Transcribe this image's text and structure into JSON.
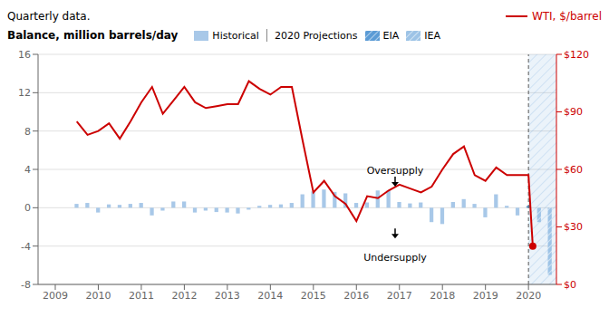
{
  "chart_data": {
    "type": "bar",
    "title": "Quarterly data.",
    "ylabel": "Balance, million barrels/day",
    "projection_label": "2020 Projections",
    "projection_start": 2020.0,
    "xlim": [
      2008.6,
      2020.65
    ],
    "xticks": [
      2009,
      2010,
      2011,
      2012,
      2013,
      2014,
      2015,
      2016,
      2017,
      2018,
      2019,
      2020
    ],
    "ylim": [
      -8,
      16
    ],
    "yticks": [
      -8,
      -4,
      0,
      4,
      8,
      12,
      16
    ],
    "y2lim": [
      0,
      120
    ],
    "y2ticks": [
      {
        "value": 0,
        "label": "$0"
      },
      {
        "value": 30,
        "label": "$30"
      },
      {
        "value": 60,
        "label": "$60"
      },
      {
        "value": 90,
        "label": "$90"
      },
      {
        "value": 120,
        "label": "$120"
      }
    ],
    "grid": true,
    "series": [
      {
        "name": "Historical",
        "type": "bar",
        "color": "#a8c8e8",
        "x": [
          2009.5,
          2009.75,
          2010.0,
          2010.25,
          2010.5,
          2010.75,
          2011.0,
          2011.25,
          2011.5,
          2011.75,
          2012.0,
          2012.25,
          2012.5,
          2012.75,
          2013.0,
          2013.25,
          2013.5,
          2013.75,
          2014.0,
          2014.25,
          2014.5,
          2014.75,
          2015.0,
          2015.25,
          2015.5,
          2015.75,
          2016.0,
          2016.25,
          2016.5,
          2016.75,
          2017.0,
          2017.25,
          2017.5,
          2017.75,
          2018.0,
          2018.25,
          2018.5,
          2018.75,
          2019.0,
          2019.25,
          2019.5,
          2019.75
        ],
        "values": [
          0.4,
          0.5,
          -0.5,
          0.35,
          0.3,
          0.4,
          0.5,
          -0.8,
          -0.3,
          0.65,
          0.65,
          -0.5,
          -0.3,
          -0.45,
          -0.5,
          -0.6,
          -0.2,
          0.2,
          0.3,
          0.35,
          0.5,
          1.4,
          1.7,
          1.9,
          1.65,
          1.5,
          0.5,
          0.55,
          1.8,
          1.8,
          0.6,
          0.45,
          0.55,
          -1.5,
          -1.7,
          0.6,
          0.9,
          0.4,
          -1.0,
          1.4,
          0.2,
          -0.8
        ]
      },
      {
        "name": "EIA",
        "type": "bar",
        "color": "#5b9bd5",
        "x": [
          2020.0
        ],
        "values": [
          0.2
        ]
      },
      {
        "name": "IEA",
        "type": "bar",
        "color": "#9dc3e6",
        "x": [
          2020.25,
          2020.5
        ],
        "values": [
          -1.5,
          -7.0
        ]
      },
      {
        "name": "WTI, $/barrel",
        "type": "line",
        "axis": "y2",
        "color": "#cc0000",
        "x": [
          2009.5,
          2009.75,
          2010.0,
          2010.25,
          2010.5,
          2010.75,
          2011.0,
          2011.25,
          2011.5,
          2011.75,
          2012.0,
          2012.25,
          2012.5,
          2012.75,
          2013.0,
          2013.25,
          2013.5,
          2013.75,
          2014.0,
          2014.25,
          2014.5,
          2014.75,
          2015.0,
          2015.25,
          2015.5,
          2015.75,
          2016.0,
          2016.25,
          2016.5,
          2016.75,
          2017.0,
          2017.25,
          2017.5,
          2017.75,
          2018.0,
          2018.25,
          2018.5,
          2018.75,
          2019.0,
          2019.25,
          2019.5,
          2019.75,
          2020.0,
          2020.1
        ],
        "values": [
          85,
          78,
          80,
          84,
          76,
          85,
          95,
          103,
          89,
          96,
          103,
          95,
          92,
          93,
          94,
          94,
          106,
          102,
          99,
          103,
          103,
          75,
          48,
          54,
          46,
          42,
          33,
          46,
          45,
          49,
          52,
          50,
          48,
          51,
          60,
          68,
          72,
          57,
          54,
          61,
          57,
          57,
          57,
          20
        ]
      }
    ],
    "annotations": [
      {
        "text": "Oversupply",
        "x": 2016.9,
        "y": 3.3,
        "arrow_y": 2.2
      },
      {
        "text": "Undersupply",
        "x": 2016.9,
        "y": -4.5,
        "arrow_y": -3.2
      }
    ]
  }
}
